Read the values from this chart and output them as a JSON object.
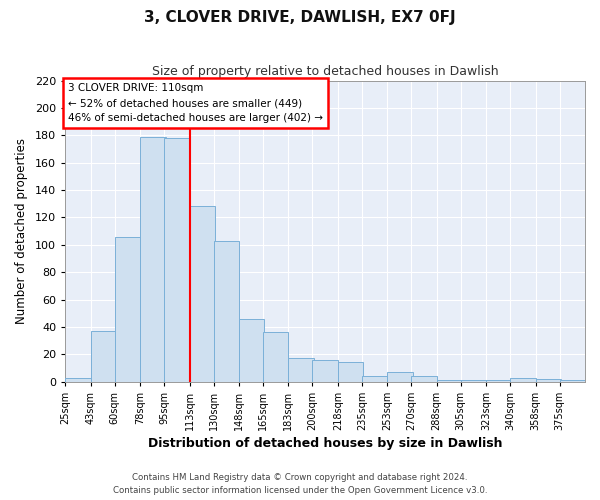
{
  "title": "3, CLOVER DRIVE, DAWLISH, EX7 0FJ",
  "subtitle": "Size of property relative to detached houses in Dawlish",
  "xlabel": "Distribution of detached houses by size in Dawlish",
  "ylabel": "Number of detached properties",
  "bar_color": "#cfe0f0",
  "bar_edge_color": "#7ab0d8",
  "plot_bg_color": "#e8eef8",
  "fig_bg_color": "#ffffff",
  "grid_color": "#ffffff",
  "red_line_x": 113,
  "annotation_title": "3 CLOVER DRIVE: 110sqm",
  "annotation_line1": "← 52% of detached houses are smaller (449)",
  "annotation_line2": "46% of semi-detached houses are larger (402) →",
  "bin_edges": [
    25,
    43,
    60,
    78,
    95,
    113,
    130,
    148,
    165,
    183,
    200,
    218,
    235,
    253,
    270,
    288,
    305,
    323,
    340,
    358,
    375
  ],
  "counts": [
    3,
    37,
    106,
    179,
    178,
    128,
    103,
    46,
    36,
    17,
    16,
    14,
    4,
    7,
    4,
    1,
    1,
    1,
    3,
    2,
    1
  ],
  "ylim": [
    0,
    220
  ],
  "yticks": [
    0,
    20,
    40,
    60,
    80,
    100,
    120,
    140,
    160,
    180,
    200,
    220
  ],
  "footer_line1": "Contains HM Land Registry data © Crown copyright and database right 2024.",
  "footer_line2": "Contains public sector information licensed under the Open Government Licence v3.0."
}
